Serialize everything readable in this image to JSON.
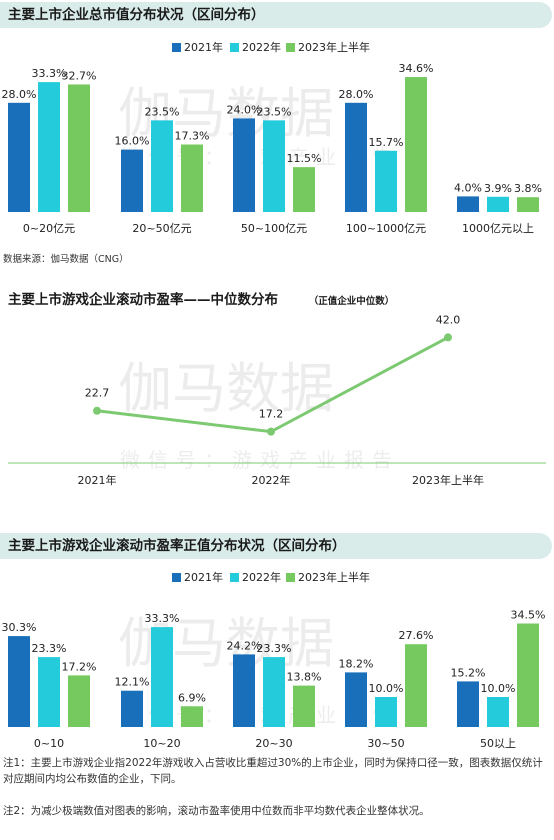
{
  "colors": {
    "y2021": "#1a6fba",
    "y2022": "#23cbdb",
    "y2023": "#76c95e",
    "line": "#7dc972",
    "title_bg": "#d9ecea"
  },
  "watermark": {
    "main": "伽马数据",
    "sub": "微信号：游戏产业报告"
  },
  "section1": {
    "title": "主要上市企业总市值分布状况（区间分布）",
    "source": "数据来源：伽马数据（CNG）"
  },
  "section2": {
    "title": "主要上市游戏企业滚动市盈率——中位数分布",
    "subtitle": "（正值企业中位数）"
  },
  "section3": {
    "title": "主要上市游戏企业滚动市盈率正值分布状况（区间分布）"
  },
  "notes": {
    "note1": "注1：主要上市游戏企业指2022年游戏收入占营收比重超过30%的上市企业，同时为保持口径一致，图表数据仅统计对应期间内均公布数值的企业，下同。",
    "note2": "注2：为减少极端数值对图表的影响，滚动市盈率使用中位数而非平均数代表企业整体状况。"
  },
  "chart_data": [
    {
      "type": "bar",
      "title": "主要上市企业总市值分布状况（区间分布）",
      "categories": [
        "0~20亿元",
        "20~50亿元",
        "50~100亿元",
        "100~1000亿元",
        "1000亿元以上"
      ],
      "series": [
        {
          "name": "2021年",
          "values": [
            28.0,
            16.0,
            24.0,
            28.0,
            4.0
          ],
          "labels": [
            "28.0%",
            "16.0%",
            "24.0%",
            "28.0%",
            "4.0%"
          ]
        },
        {
          "name": "2022年",
          "values": [
            33.3,
            23.5,
            23.5,
            15.7,
            3.9
          ],
          "labels": [
            "33.3%",
            "23.5%",
            "23.5%",
            "15.7%",
            "3.9%"
          ]
        },
        {
          "name": "2023年上半年",
          "values": [
            32.7,
            17.3,
            11.5,
            34.6,
            3.8
          ],
          "labels": [
            "32.7%",
            "17.3%",
            "11.5%",
            "34.6%",
            "3.8%"
          ]
        }
      ],
      "ylim": [
        0,
        36
      ],
      "legend": "top-center"
    },
    {
      "type": "line",
      "title": "主要上市游戏企业滚动市盈率——中位数分布",
      "categories": [
        "2021年",
        "2022年",
        "2023年上半年"
      ],
      "series": [
        {
          "values": [
            22.7,
            17.2,
            42.0
          ],
          "labels": [
            "22.7",
            "17.2",
            "42.0"
          ]
        }
      ],
      "ylim": [
        10,
        45
      ]
    },
    {
      "type": "bar",
      "title": "主要上市游戏企业滚动市盈率正值分布状况（区间分布）",
      "categories": [
        "0~10",
        "10~20",
        "20~30",
        "30~50",
        "50以上"
      ],
      "series": [
        {
          "name": "2021年",
          "values": [
            30.3,
            12.1,
            24.2,
            18.2,
            15.2
          ],
          "labels": [
            "30.3%",
            "12.1%",
            "24.2%",
            "18.2%",
            "15.2%"
          ]
        },
        {
          "name": "2022年",
          "values": [
            23.3,
            33.3,
            23.3,
            10.0,
            10.0
          ],
          "labels": [
            "23.3%",
            "33.3%",
            "23.3%",
            "10.0%",
            "10.0%"
          ]
        },
        {
          "name": "2023年上半年",
          "values": [
            17.2,
            6.9,
            13.8,
            27.6,
            34.5
          ],
          "labels": [
            "17.2%",
            "6.9%",
            "13.8%",
            "27.6%",
            "34.5%"
          ]
        }
      ],
      "ylim": [
        0,
        36
      ],
      "legend": "top-center"
    }
  ]
}
